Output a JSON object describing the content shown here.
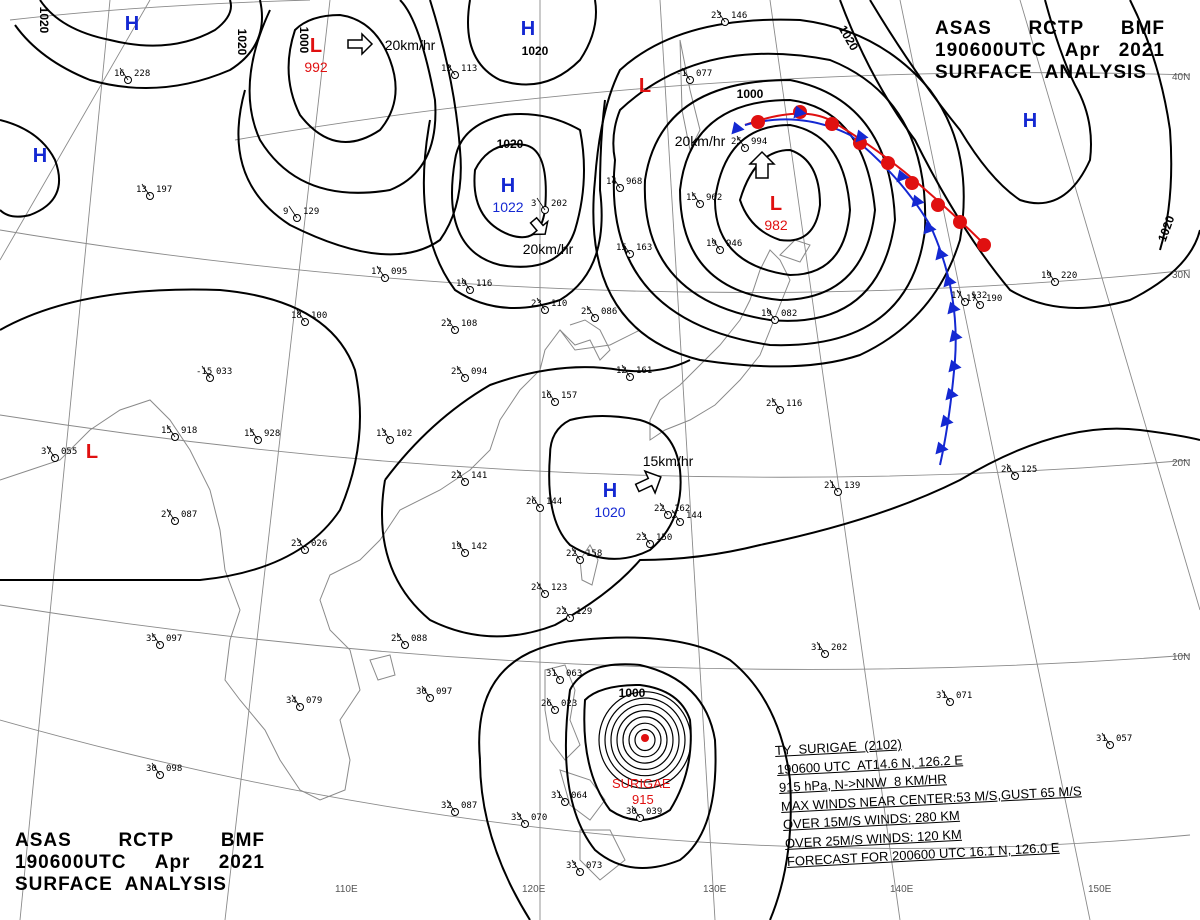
{
  "header_top": {
    "line1": [
      "ASAS",
      "RCTP",
      "BMF"
    ],
    "line2": [
      "190600UTC",
      "Apr",
      "2021"
    ],
    "line3": "SURFACE  ANALYSIS"
  },
  "header_bottom": {
    "line1": [
      "ASAS",
      "RCTP",
      "BMF"
    ],
    "line2": [
      "190600UTC",
      "Apr",
      "2021"
    ],
    "line3": "SURFACE  ANALYSIS"
  },
  "colors": {
    "high": "#1428d2",
    "low": "#e01010",
    "front_warm": "#e01010",
    "front_cold": "#1428d2",
    "isobar": "#000000",
    "grid": "#8a8a8a",
    "coast": "#8a8a8a"
  },
  "longitude_labels": [
    "110E",
    "120E",
    "130E",
    "140E",
    "150E"
  ],
  "latitude_labels": [
    "40N",
    "30N",
    "20N",
    "10N"
  ],
  "pressure_centers": [
    {
      "type": "H",
      "value": ""
    },
    {
      "type": "H",
      "value": ""
    },
    {
      "type": "H",
      "value": ""
    },
    {
      "type": "H",
      "value": "1022"
    },
    {
      "type": "H",
      "value": "1020"
    },
    {
      "type": "H",
      "value": ""
    },
    {
      "type": "L",
      "value": "992"
    },
    {
      "type": "L",
      "value": ""
    },
    {
      "type": "L",
      "value": "982"
    },
    {
      "type": "L",
      "value": ""
    }
  ],
  "isobar_labels": [
    "1020",
    "1020",
    "1000",
    "1020",
    "1020",
    "1020",
    "1000",
    "1020",
    "1000"
  ],
  "motion_labels": [
    "20km/hr",
    "20km/hr",
    "20km/hr",
    "15km/hr"
  ],
  "typhoon": {
    "name": "SURIGAE",
    "pressure": "915",
    "lines": [
      "TY  SURIGAE  (2102)",
      "190600 UTC  AT14.6 N, 126.2 E",
      "915 hPa, N->NNW  8 KM/HR",
      "MAX WINDS NEAR CENTER:53 M/S,GUST 65 M/S",
      "OVER 15M/S WINDS: 280 KM",
      "OVER 25M/S WINDS: 120 KM",
      "FORECAST FOR 200600 UTC 16.1 N, 126.0 E"
    ]
  },
  "station_reports": [
    {
      "t": "228",
      "v": "16"
    },
    {
      "t": "197",
      "v": "13"
    },
    {
      "t": "100",
      "v": "18"
    },
    {
      "t": "129",
      "v": "9"
    },
    {
      "t": "095",
      "v": "17"
    },
    {
      "t": "116",
      "v": "19"
    },
    {
      "t": "108",
      "v": "22"
    },
    {
      "t": "094",
      "v": "25"
    },
    {
      "t": "033",
      "v": "-15"
    },
    {
      "t": "918",
      "v": "15"
    },
    {
      "t": "928",
      "v": "15"
    },
    {
      "t": "102",
      "v": "13"
    },
    {
      "t": "141",
      "v": "22"
    },
    {
      "t": "142",
      "v": "19"
    },
    {
      "t": "087",
      "v": "27"
    },
    {
      "t": "026",
      "v": "23"
    },
    {
      "t": "097",
      "v": "35"
    },
    {
      "t": "079",
      "v": "34"
    },
    {
      "t": "088",
      "v": "25"
    },
    {
      "t": "097",
      "v": "30"
    },
    {
      "t": "087",
      "v": "32"
    },
    {
      "t": "098",
      "v": "30"
    },
    {
      "t": "055",
      "v": "37"
    },
    {
      "t": "110",
      "v": "23"
    },
    {
      "t": "086",
      "v": "25"
    },
    {
      "t": "161",
      "v": "12"
    },
    {
      "t": "157",
      "v": "16"
    },
    {
      "t": "144",
      "v": "26"
    },
    {
      "t": "158",
      "v": "22"
    },
    {
      "t": "123",
      "v": "24"
    },
    {
      "t": "129",
      "v": "22"
    },
    {
      "t": "113",
      "v": "13"
    },
    {
      "t": "202",
      "v": "3"
    },
    {
      "t": "962",
      "v": "15"
    },
    {
      "t": "946",
      "v": "19"
    },
    {
      "t": "968",
      "v": "14"
    },
    {
      "t": "994",
      "v": "25"
    },
    {
      "t": "146",
      "v": "23"
    },
    {
      "t": "077",
      "v": "-1"
    },
    {
      "t": "139",
      "v": "21"
    },
    {
      "t": "125",
      "v": "26"
    },
    {
      "t": "220",
      "v": "19"
    },
    {
      "t": "071",
      "v": "31"
    },
    {
      "t": "057",
      "v": "31"
    },
    {
      "t": "202",
      "v": "31"
    },
    {
      "t": "063",
      "v": "31"
    },
    {
      "t": "023",
      "v": "26"
    },
    {
      "t": "039",
      "v": "30"
    },
    {
      "t": "064",
      "v": "31"
    },
    {
      "t": "070",
      "v": "33"
    },
    {
      "t": "073",
      "v": "33"
    },
    {
      "t": "116",
      "v": "25"
    },
    {
      "t": "144",
      "v": "22"
    },
    {
      "t": "150",
      "v": "23"
    },
    {
      "t": "162",
      "v": "22"
    },
    {
      "t": "082",
      "v": "19"
    },
    {
      "t": "163",
      "v": "15"
    },
    {
      "t": "132",
      "v": "17"
    },
    {
      "t": "190",
      "v": "17"
    }
  ]
}
